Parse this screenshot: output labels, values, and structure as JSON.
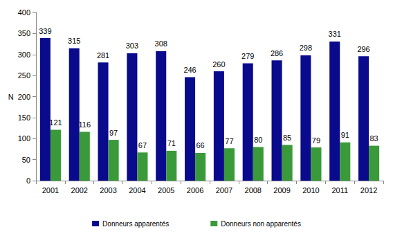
{
  "chart_data": {
    "type": "bar",
    "categories": [
      "2001",
      "2002",
      "2003",
      "2004",
      "2005",
      "2006",
      "2007",
      "2008",
      "2009",
      "2010",
      "2011",
      "2012"
    ],
    "series": [
      {
        "name": "Donneurs apparentés",
        "color": "#0a0a8c",
        "values": [
          339,
          315,
          281,
          303,
          308,
          246,
          260,
          279,
          286,
          298,
          331,
          296
        ]
      },
      {
        "name": "Donneurs non apparentés",
        "color": "#3a9a3a",
        "values": [
          121,
          116,
          97,
          67,
          71,
          66,
          77,
          80,
          85,
          79,
          91,
          83
        ]
      }
    ],
    "ylabel": "N",
    "ylim": [
      0,
      400
    ],
    "yticks": [
      0,
      50,
      100,
      150,
      200,
      250,
      300,
      350,
      400
    ],
    "grid": false,
    "legend": "bottom",
    "data_labels": true
  }
}
